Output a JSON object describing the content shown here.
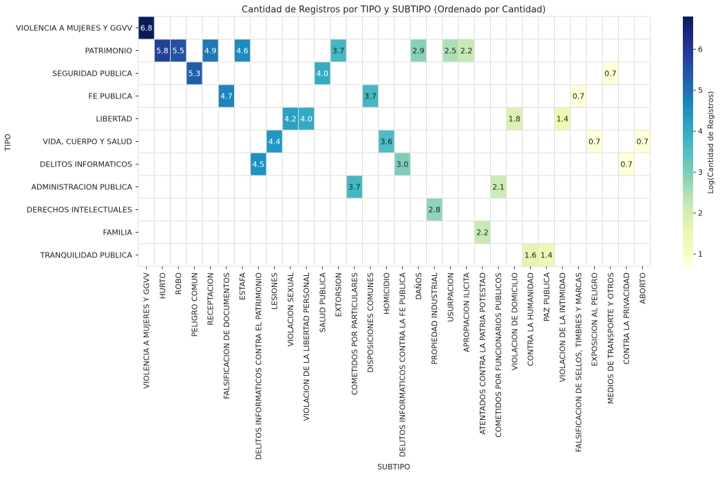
{
  "chart_data": {
    "type": "heatmap",
    "title": "Cantidad de Registros por TIPO y SUBTIPO (Ordenado por Cantidad)",
    "xlabel": "SUBTIPO",
    "ylabel": "TIPO",
    "colorbar_label": "Log(Cantidad de Registros)",
    "colorbar_ticks": [
      "1",
      "2",
      "3",
      "4",
      "5",
      "6"
    ],
    "color_range": [
      0.7,
      6.8
    ],
    "colormap": "YlGnBu",
    "grid": true,
    "rows": [
      "VIOLENCIA A MUJERES Y GGVV",
      "PATRIMONIO",
      "SEGURIDAD PUBLICA",
      "FE PUBLICA",
      "LIBERTAD",
      "VIDA, CUERPO Y SALUD",
      "DELITOS INFORMATICOS",
      "ADMINISTRACION PUBLICA",
      "DERECHOS INTELECTUALES",
      "FAMILIA",
      "TRANQUILIDAD PUBLICA"
    ],
    "columns": [
      "VIOLENCIA A MUJERES Y GGVV",
      "HURTO",
      "ROBO",
      "PELIGRO COMUN",
      "RECEPTACION",
      "FALSIFICACION DE DOCUMENTOS",
      "ESTAFA",
      "DELITOS INFORMATICOS CONTRA EL PATRIMONIO",
      "LESIONES",
      "VIOLACION SEXUAL",
      "VIOLACION DE LA LIBERTAD PERSONAL",
      "SALUD PUBLICA",
      "EXTORSION",
      "COMETIDOS POR PARTICULARES",
      "DISPOSICIONES COMUNES",
      "HOMICIDIO",
      "DELITOS INFORMATICOS CONTRA LA FE PUBLICA",
      "DAÑOS",
      "PROPIEDAD INDUSTRIAL",
      "USURPACION",
      "APROPIACION ILICITA",
      "ATENTADOS CONTRA LA PATRIA POTESTAD",
      "COMETIDOS POR FUNCIONARIOS PUBLICOS",
      "VIOLACION DE DOMICILIO",
      "CONTRA LA HUMANIDAD",
      "PAZ PUBLICA",
      "VIOLACION DE LA INTIMIDAD",
      "FALSIFICACION DE SELLOS, TIMBRES Y MARCAS",
      "EXPOSICION AL PELIGRO",
      "MEDIOS DE TRANSPORTE Y OTROS",
      "CONTRA LA PRIVACIDAD",
      "ABORTO"
    ],
    "cells": [
      {
        "row": "VIOLENCIA A MUJERES Y GGVV",
        "col": "VIOLENCIA A MUJERES Y GGVV",
        "value": 6.8
      },
      {
        "row": "PATRIMONIO",
        "col": "HURTO",
        "value": 5.8
      },
      {
        "row": "PATRIMONIO",
        "col": "ROBO",
        "value": 5.5
      },
      {
        "row": "PATRIMONIO",
        "col": "RECEPTACION",
        "value": 4.9
      },
      {
        "row": "PATRIMONIO",
        "col": "ESTAFA",
        "value": 4.6
      },
      {
        "row": "PATRIMONIO",
        "col": "EXTORSION",
        "value": 3.7
      },
      {
        "row": "PATRIMONIO",
        "col": "DAÑOS",
        "value": 2.9
      },
      {
        "row": "PATRIMONIO",
        "col": "USURPACION",
        "value": 2.5
      },
      {
        "row": "PATRIMONIO",
        "col": "APROPIACION ILICITA",
        "value": 2.2
      },
      {
        "row": "SEGURIDAD PUBLICA",
        "col": "PELIGRO COMUN",
        "value": 5.3
      },
      {
        "row": "SEGURIDAD PUBLICA",
        "col": "SALUD PUBLICA",
        "value": 4.0
      },
      {
        "row": "SEGURIDAD PUBLICA",
        "col": "MEDIOS DE TRANSPORTE Y OTROS",
        "value": 0.7
      },
      {
        "row": "FE PUBLICA",
        "col": "FALSIFICACION DE DOCUMENTOS",
        "value": 4.7
      },
      {
        "row": "FE PUBLICA",
        "col": "DISPOSICIONES COMUNES",
        "value": 3.7
      },
      {
        "row": "FE PUBLICA",
        "col": "FALSIFICACION DE SELLOS, TIMBRES Y MARCAS",
        "value": 0.7
      },
      {
        "row": "LIBERTAD",
        "col": "VIOLACION SEXUAL",
        "value": 4.2
      },
      {
        "row": "LIBERTAD",
        "col": "VIOLACION DE LA LIBERTAD PERSONAL",
        "value": 4.0
      },
      {
        "row": "LIBERTAD",
        "col": "VIOLACION DE DOMICILIO",
        "value": 1.8
      },
      {
        "row": "LIBERTAD",
        "col": "VIOLACION DE LA INTIMIDAD",
        "value": 1.4
      },
      {
        "row": "VIDA, CUERPO Y SALUD",
        "col": "LESIONES",
        "value": 4.4
      },
      {
        "row": "VIDA, CUERPO Y SALUD",
        "col": "HOMICIDIO",
        "value": 3.6
      },
      {
        "row": "VIDA, CUERPO Y SALUD",
        "col": "EXPOSICION AL PELIGRO",
        "value": 0.7
      },
      {
        "row": "VIDA, CUERPO Y SALUD",
        "col": "ABORTO",
        "value": 0.7
      },
      {
        "row": "DELITOS INFORMATICOS",
        "col": "DELITOS INFORMATICOS CONTRA EL PATRIMONIO",
        "value": 4.5
      },
      {
        "row": "DELITOS INFORMATICOS",
        "col": "DELITOS INFORMATICOS CONTRA LA FE PUBLICA",
        "value": 3.0
      },
      {
        "row": "DELITOS INFORMATICOS",
        "col": "CONTRA LA PRIVACIDAD",
        "value": 0.7
      },
      {
        "row": "ADMINISTRACION PUBLICA",
        "col": "COMETIDOS POR PARTICULARES",
        "value": 3.7
      },
      {
        "row": "ADMINISTRACION PUBLICA",
        "col": "COMETIDOS POR FUNCIONARIOS PUBLICOS",
        "value": 2.1
      },
      {
        "row": "DERECHOS INTELECTUALES",
        "col": "PROPIEDAD INDUSTRIAL",
        "value": 2.8
      },
      {
        "row": "FAMILIA",
        "col": "ATENTADOS CONTRA LA PATRIA POTESTAD",
        "value": 2.2
      },
      {
        "row": "TRANQUILIDAD PUBLICA",
        "col": "CONTRA LA HUMANIDAD",
        "value": 1.6
      },
      {
        "row": "TRANQUILIDAD PUBLICA",
        "col": "PAZ PUBLICA",
        "value": 1.4
      }
    ]
  }
}
